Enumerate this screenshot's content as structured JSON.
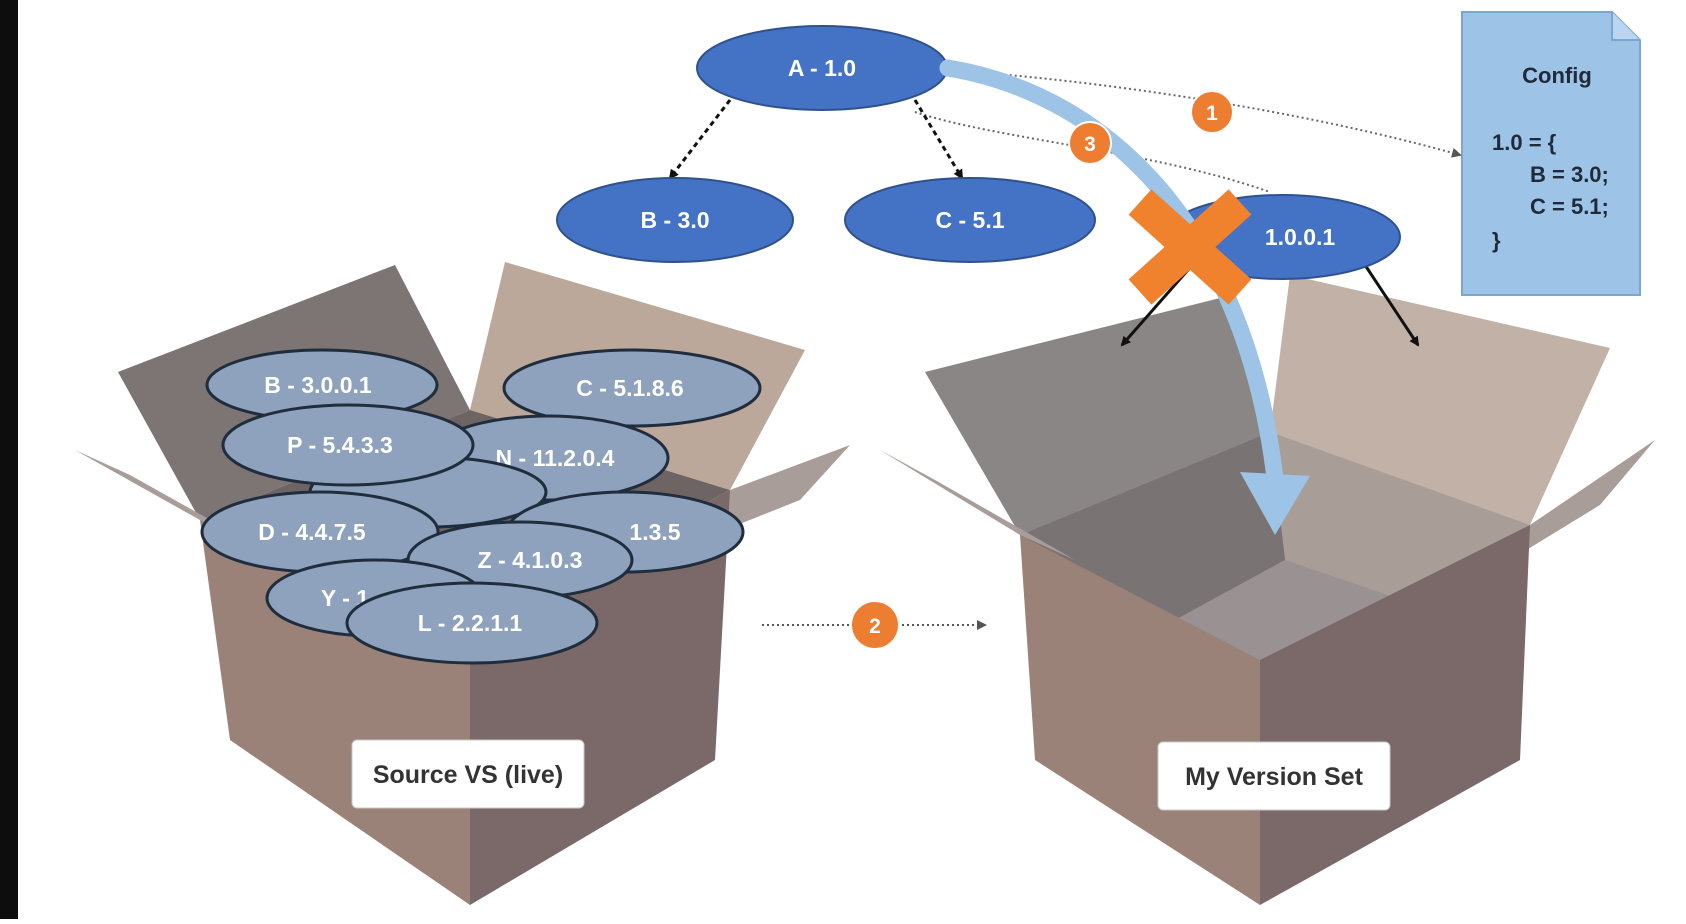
{
  "colors": {
    "node_blue": "#4472c4",
    "node_stroke": "#2f528f",
    "package_fill": "#8ea2bd",
    "package_stroke": "#1f2d3d",
    "step_orange": "#ed7d31",
    "cross_orange": "#f0822e",
    "flow_arrow": "#9dc3e6",
    "config_fill": "#9dc3e6"
  },
  "dependency_tree": {
    "root": "A - 1.0",
    "children": [
      "B - 3.0",
      "C - 5.1"
    ],
    "rejected_node": "1.0.0.1"
  },
  "config_doc": {
    "title": "Config",
    "lines": [
      "1.0 = {",
      "B = 3.0;",
      "C = 5.1;",
      "}"
    ]
  },
  "steps": [
    "1",
    "2",
    "3"
  ],
  "source_box": {
    "label": "Source VS (live)",
    "packages": [
      "B - 3.0.0.1",
      "C - 5.1.8.6",
      "P - 5.4.3.3",
      "N - 11.2.0.4",
      "D - 4.4.7.5",
      "1.3.5",
      "Z - 4.1.0.3",
      "Y - 1",
      "L - 2.2.1.1"
    ]
  },
  "target_box": {
    "label": "My Version Set"
  }
}
